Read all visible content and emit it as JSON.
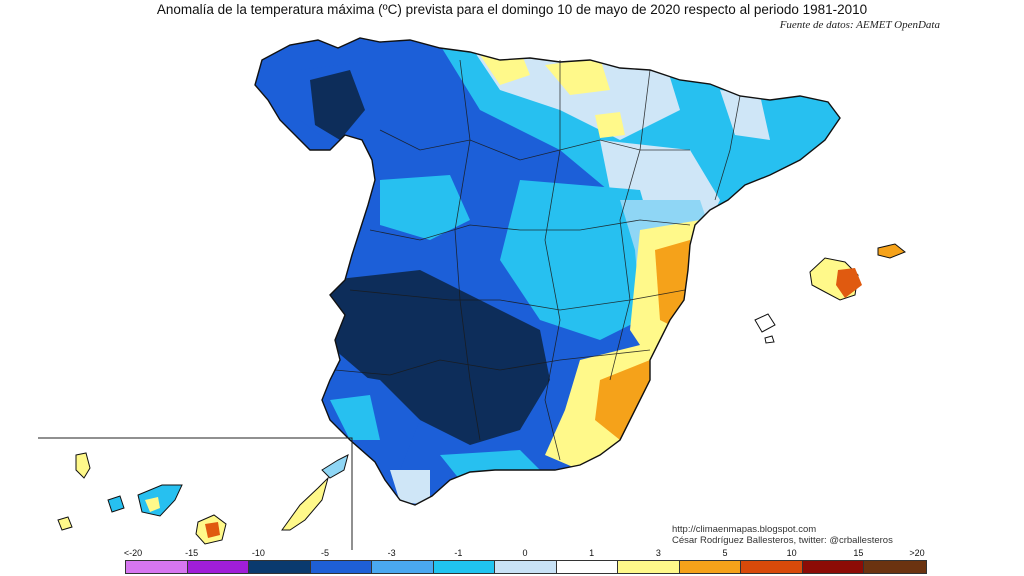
{
  "title": "Anomalía de la temperatura máxima (ºC) prevista para el domingo 10 de mayo de 2020 respecto al periodo 1981-2010",
  "source": "Fuente de datos: AEMET OpenData",
  "credits": {
    "url": "http://climaenmapas.blogspot.com",
    "author": "César Rodríguez Ballesteros, twitter: @crballesteros"
  },
  "legend": {
    "tick_labels": [
      "<-20",
      "-15",
      "-10",
      "-5",
      "-3",
      "-1",
      "0",
      "1",
      "3",
      "5",
      "10",
      "15",
      ">20"
    ],
    "colors": [
      "#d676f0",
      "#a01ed8",
      "#0a3a6e",
      "#1e5fd6",
      "#4aa8f0",
      "#20c4f0",
      "#c8e2f6",
      "#ffffff",
      "#fff98a",
      "#f5a21a",
      "#d84a0a",
      "#8c0c06",
      "#6b3310"
    ]
  },
  "palette": {
    "dark_navy": "#0d2d5a",
    "blue": "#1c5fd8",
    "mid_blue": "#2f7ee8",
    "cyan": "#27c0f0",
    "light_cyan": "#8fd6f5",
    "pale_blue": "#cfe6f7",
    "white": "#ffffff",
    "yellow": "#fff98a",
    "orange": "#f5a21a",
    "dark_orange": "#e05a10",
    "coast": "#111111"
  }
}
